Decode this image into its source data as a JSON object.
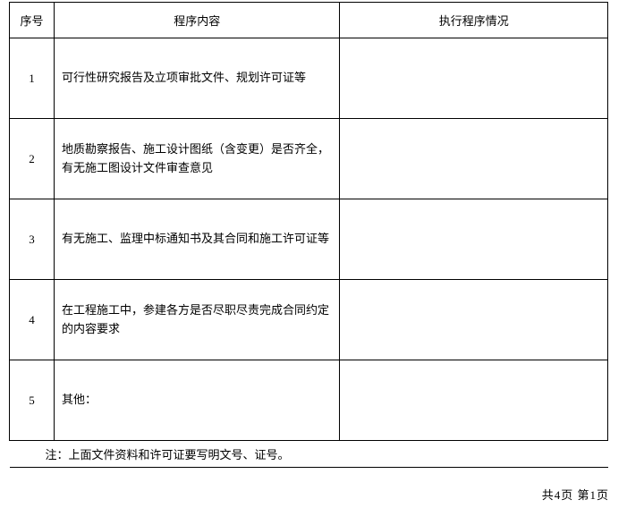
{
  "table": {
    "headers": {
      "index": "序号",
      "content": "程序内容",
      "status": "执行程序情况"
    },
    "rows": [
      {
        "index": "1",
        "content": "可行性研究报告及立项审批文件、规划许可证等",
        "status": ""
      },
      {
        "index": "2",
        "content": "地质勘察报告、施工设计图纸（含变更）是否齐全，有无施工图设计文件审查意见",
        "status": ""
      },
      {
        "index": "3",
        "content": "有无施工、监理中标通知书及其合同和施工许可证等",
        "status": ""
      },
      {
        "index": "4",
        "content": "在工程施工中，参建各方是否尽职尽责完成合同约定的内容要求",
        "status": ""
      },
      {
        "index": "5",
        "content": "其他：",
        "status": ""
      }
    ],
    "footnote": "注：上面文件资料和许可证要写明文号、证号。"
  },
  "pager": "共4页 第1页"
}
